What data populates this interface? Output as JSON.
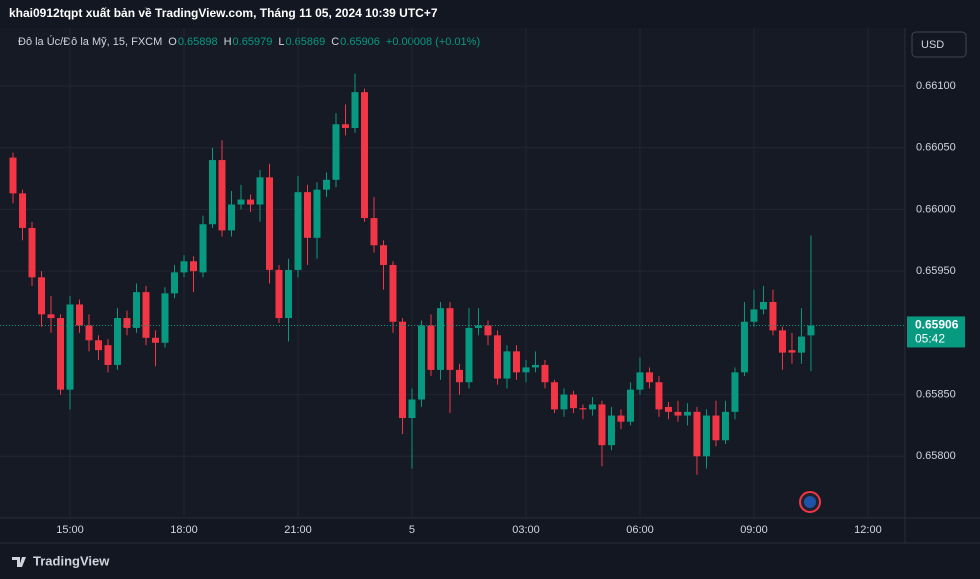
{
  "chart_data": {
    "type": "candlestick",
    "title": "khai0912tqpt xuất bản về TradingView.com, Tháng 11 05, 2024 10:39 UTC+7",
    "legend": {
      "symbol": "Đô la Úc/Đô la Mỹ, 15, FXCM",
      "labels": [
        "O",
        "H",
        "L",
        "C"
      ],
      "values": [
        0.65898,
        0.65979,
        0.65869,
        0.65906
      ],
      "change": "+0.00008 (+0.01%)"
    },
    "currency": "USD",
    "last_price": 0.65906,
    "countdown": "05:42",
    "footer": "TradingView",
    "up_color": "#089981",
    "down_color": "#f23645",
    "grid": true,
    "open": [
      0.66042,
      0.66013,
      0.65985,
      0.65945,
      0.65915,
      0.65912,
      0.65854,
      0.65923,
      0.65906,
      0.65894,
      0.6589,
      0.65874,
      0.65912,
      0.65904,
      0.65933,
      0.65896,
      0.65892,
      0.65932,
      0.65949,
      0.65958,
      0.65949,
      0.65988,
      0.6604,
      0.65983,
      0.66004,
      0.66008,
      0.66004,
      0.66026,
      0.65951,
      0.65912,
      0.65951,
      0.66014,
      0.65977,
      0.66016,
      0.66024,
      0.66069,
      0.66066,
      0.66095,
      0.65993,
      0.65971,
      0.65955,
      0.65909,
      0.65831,
      0.65846,
      0.65906,
      0.6587,
      0.6592,
      0.6587,
      0.6586,
      0.65904,
      0.65906,
      0.65898,
      0.65863,
      0.65885,
      0.65868,
      0.65872,
      0.65874,
      0.6586,
      0.65838,
      0.6585,
      0.65839,
      0.65838,
      0.65842,
      0.65809,
      0.65833,
      0.65828,
      0.65854,
      0.65868,
      0.6586,
      0.6584,
      0.65836,
      0.65833,
      0.65836,
      0.658,
      0.65833,
      0.65813,
      0.65836,
      0.65868,
      0.65909,
      0.65919,
      0.65925,
      0.65902,
      0.65886,
      0.65884,
      0.65898
    ],
    "high": [
      0.66046,
      0.66016,
      0.6599,
      0.6595,
      0.6593,
      0.65915,
      0.6593,
      0.65927,
      0.65915,
      0.65898,
      0.65895,
      0.6592,
      0.65918,
      0.6594,
      0.65938,
      0.65902,
      0.65937,
      0.65955,
      0.65963,
      0.65962,
      0.65995,
      0.6605,
      0.66056,
      0.66015,
      0.6602,
      0.66012,
      0.66032,
      0.66037,
      0.65955,
      0.6596,
      0.66027,
      0.6602,
      0.66022,
      0.6603,
      0.66078,
      0.66085,
      0.6611,
      0.66098,
      0.6601,
      0.65975,
      0.65958,
      0.65912,
      0.65855,
      0.6591,
      0.65915,
      0.65925,
      0.65925,
      0.65875,
      0.6592,
      0.6592,
      0.6591,
      0.65902,
      0.6589,
      0.6589,
      0.65878,
      0.65885,
      0.65878,
      0.65862,
      0.65855,
      0.65853,
      0.65842,
      0.65848,
      0.65845,
      0.6584,
      0.65838,
      0.6586,
      0.6588,
      0.65872,
      0.65865,
      0.65844,
      0.65845,
      0.65843,
      0.6584,
      0.65838,
      0.65845,
      0.65845,
      0.65872,
      0.65925,
      0.65935,
      0.65938,
      0.65935,
      0.65905,
      0.659,
      0.6592,
      0.65979
    ],
    "low": [
      0.66005,
      0.65975,
      0.65938,
      0.65905,
      0.659,
      0.6585,
      0.65838,
      0.659,
      0.65885,
      0.65878,
      0.65868,
      0.6587,
      0.65898,
      0.659,
      0.6589,
      0.65873,
      0.65888,
      0.65928,
      0.65945,
      0.65933,
      0.65945,
      0.65985,
      0.65978,
      0.65978,
      0.66,
      0.65998,
      0.6599,
      0.6594,
      0.65908,
      0.65893,
      0.65945,
      0.65955,
      0.6596,
      0.6601,
      0.66018,
      0.6606,
      0.66062,
      0.6599,
      0.65965,
      0.65935,
      0.659,
      0.65818,
      0.6579,
      0.6584,
      0.65865,
      0.65862,
      0.65835,
      0.6585,
      0.65855,
      0.65898,
      0.6589,
      0.65858,
      0.65855,
      0.65862,
      0.6586,
      0.65868,
      0.65855,
      0.65835,
      0.65832,
      0.65835,
      0.6583,
      0.65833,
      0.65792,
      0.65805,
      0.65822,
      0.65825,
      0.6585,
      0.65855,
      0.65832,
      0.6583,
      0.65828,
      0.65825,
      0.65785,
      0.6579,
      0.65808,
      0.6581,
      0.6583,
      0.65865,
      0.65905,
      0.65915,
      0.65898,
      0.6587,
      0.65875,
      0.65875,
      0.65869
    ],
    "close": [
      0.66013,
      0.65985,
      0.65945,
      0.65915,
      0.65912,
      0.65854,
      0.65923,
      0.65906,
      0.65894,
      0.65886,
      0.65874,
      0.65912,
      0.65904,
      0.65933,
      0.65896,
      0.65892,
      0.65932,
      0.65949,
      0.65958,
      0.6595,
      0.65988,
      0.6604,
      0.65983,
      0.66004,
      0.66008,
      0.66004,
      0.66026,
      0.65951,
      0.65912,
      0.65951,
      0.66014,
      0.65977,
      0.66016,
      0.66024,
      0.66069,
      0.66066,
      0.66095,
      0.65993,
      0.65971,
      0.65955,
      0.65909,
      0.65831,
      0.65846,
      0.65906,
      0.6587,
      0.6592,
      0.6587,
      0.6586,
      0.65904,
      0.65906,
      0.65898,
      0.65863,
      0.65885,
      0.65868,
      0.65872,
      0.65874,
      0.6586,
      0.65838,
      0.6585,
      0.65839,
      0.65838,
      0.65842,
      0.65809,
      0.65833,
      0.65828,
      0.65854,
      0.65868,
      0.6586,
      0.65838,
      0.65836,
      0.65833,
      0.65836,
      0.658,
      0.65833,
      0.65813,
      0.65836,
      0.65868,
      0.65909,
      0.65919,
      0.65925,
      0.65902,
      0.65884,
      0.65884,
      0.65897,
      0.65906
    ],
    "xlim": [
      -1.37,
      93.9
    ],
    "xticks": [
      {
        "value": 6,
        "label": "15:00"
      },
      {
        "value": 18,
        "label": "18:00"
      },
      {
        "value": 30,
        "label": "21:00"
      },
      42,
      54,
      66,
      78,
      90
    ],
    "xtick_labels": [
      "15:00",
      "18:00",
      "21:00",
      "5",
      "03:00",
      "06:00",
      "09:00",
      "12:00"
    ],
    "ylim": [
      0.6575,
      0.66147
    ],
    "yticks": [
      {
        "value": 0.661,
        "label": "0.66100"
      },
      {
        "value": 0.6605,
        "label": "0.66050"
      },
      {
        "value": 0.66,
        "label": "0.66000"
      },
      {
        "value": 0.6595,
        "label": "0.65950"
      },
      {
        "value": 0.6585,
        "label": "0.65850"
      },
      {
        "value": 0.658,
        "label": "0.65800"
      }
    ]
  }
}
